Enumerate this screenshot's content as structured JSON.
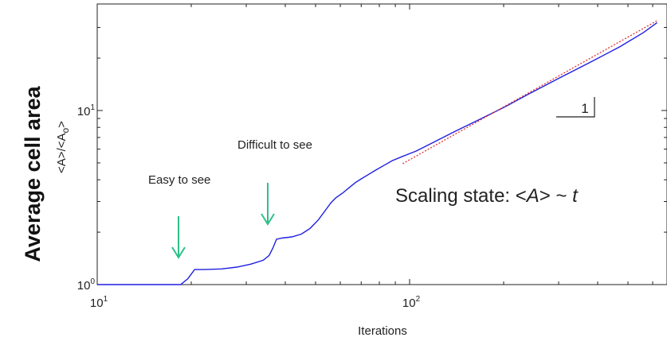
{
  "chart_data": {
    "type": "line",
    "title": "",
    "side_label": "Average cell area",
    "ylabel": {
      "pre": "<A>/<A",
      "sub": "o",
      "post": ">"
    },
    "xlabel": "Iterations",
    "x_scale": "log",
    "y_scale": "log",
    "xlim": [
      10,
      620
    ],
    "ylim": [
      1.0,
      35
    ],
    "x_ticks": [
      {
        "value": 10,
        "base": "10",
        "exp": "1"
      },
      {
        "value": 100,
        "base": "10",
        "exp": "2"
      }
    ],
    "y_ticks": [
      {
        "value": 1,
        "base": "10",
        "exp": "0"
      },
      {
        "value": 10,
        "base": "10",
        "exp": "1"
      }
    ],
    "series": [
      {
        "color": "#1f1fe0",
        "x": [
          10,
          13,
          16,
          18.5,
          19.5,
          20.5,
          22,
          25,
          28,
          31,
          34,
          35.5,
          36.5,
          37.5,
          39,
          42,
          45,
          48,
          51,
          54,
          56,
          58,
          61,
          64,
          67,
          70,
          74,
          78,
          83,
          88,
          95,
          105,
          120,
          140,
          170,
          200,
          240,
          300,
          380,
          470,
          560,
          620
        ],
        "y": [
          1.0,
          1.0,
          1.0,
          1.0,
          1.08,
          1.22,
          1.22,
          1.23,
          1.26,
          1.31,
          1.38,
          1.47,
          1.62,
          1.82,
          1.85,
          1.88,
          1.95,
          2.1,
          2.35,
          2.7,
          2.95,
          3.15,
          3.35,
          3.6,
          3.85,
          4.05,
          4.3,
          4.55,
          4.85,
          5.15,
          5.45,
          5.85,
          6.6,
          7.6,
          9.0,
          10.4,
          12.4,
          15.3,
          19.0,
          23.2,
          28.0,
          32.0
        ]
      },
      {
        "color": "#e03030",
        "style": "dotted",
        "x": [
          95,
          620
        ],
        "y": [
          4.95,
          32.8
        ]
      }
    ],
    "annotations": [
      {
        "text": "Easy to see",
        "color": "#222222"
      },
      {
        "text": "Difficult to see",
        "color": "#222222"
      },
      {
        "text": "Scaling state: <A> ~ t",
        "pre": "Scaling state: <",
        "a": "A",
        "mid": "> ~ ",
        "t": "t"
      }
    ],
    "slope_label": "1",
    "arrow_color": "#2ec08a",
    "grid": false,
    "legend": "none"
  }
}
